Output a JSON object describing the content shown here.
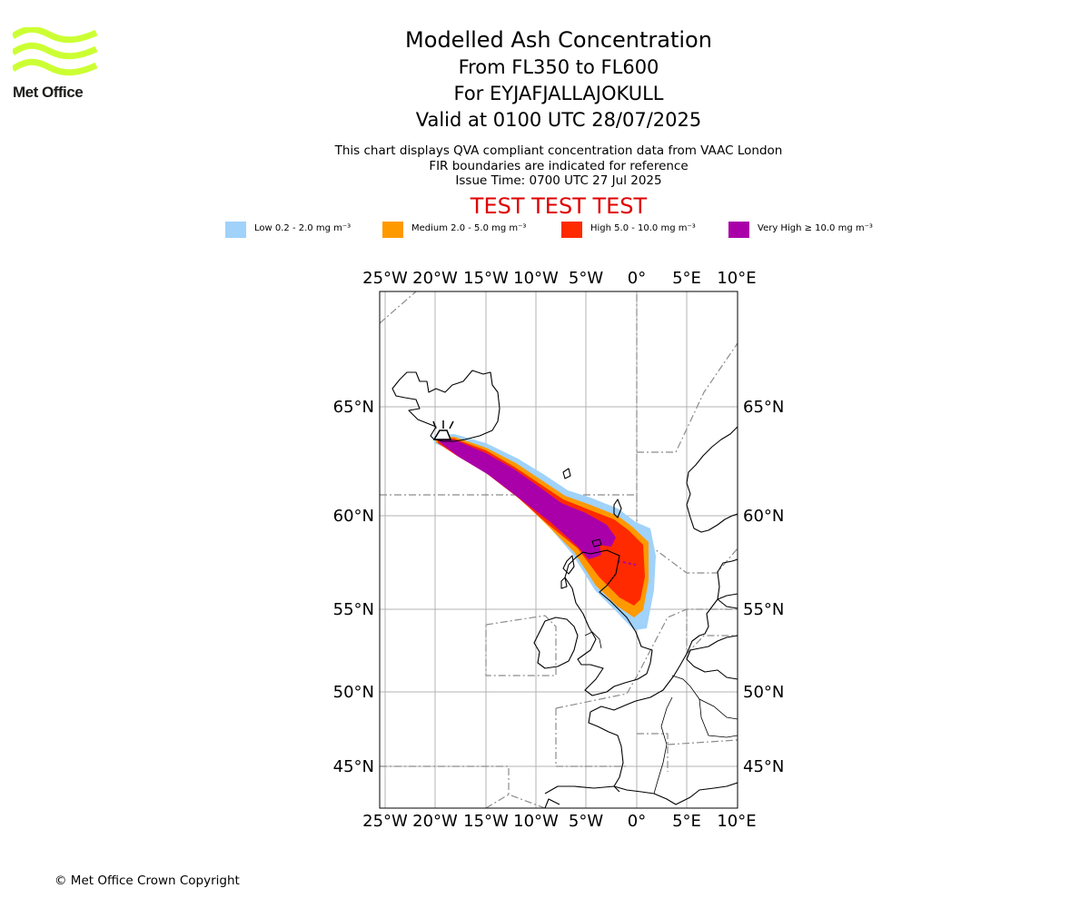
{
  "logo": {
    "text": "Met Office",
    "color": "#ccff33"
  },
  "title": {
    "main": "Modelled Ash Concentration",
    "levels": "From FL350 to FL600",
    "volcano": "For EYJAFJALLAJOKULL",
    "valid": "Valid at 0100 UTC 28/07/2025"
  },
  "notes": [
    "This chart displays QVA compliant concentration data from VAAC London",
    "FIR boundaries are indicated for reference",
    "Issue Time: 0700 UTC 27 Jul 2025"
  ],
  "test_banner": "TEST TEST TEST",
  "legend": [
    {
      "label": "Low 0.2 - 2.0 mg m⁻³",
      "color": "#a0d2fa"
    },
    {
      "label": "Medium 2.0 - 5.0 mg m⁻³",
      "color": "#ff9900"
    },
    {
      "label": "High 5.0 - 10.0 mg m⁻³",
      "color": "#ff2a00"
    },
    {
      "label": "Very High ≥ 10.0 mg m⁻³",
      "color": "#aa00aa"
    }
  ],
  "map": {
    "lon_labels": [
      "25°W",
      "20°W",
      "15°W",
      "10°W",
      "5°W",
      "0°",
      "5°E",
      "10°E"
    ],
    "lat_labels": [
      "65°N",
      "60°N",
      "55°N",
      "50°N",
      "45°N"
    ]
  },
  "copyright": "© Met Office Crown Copyright"
}
